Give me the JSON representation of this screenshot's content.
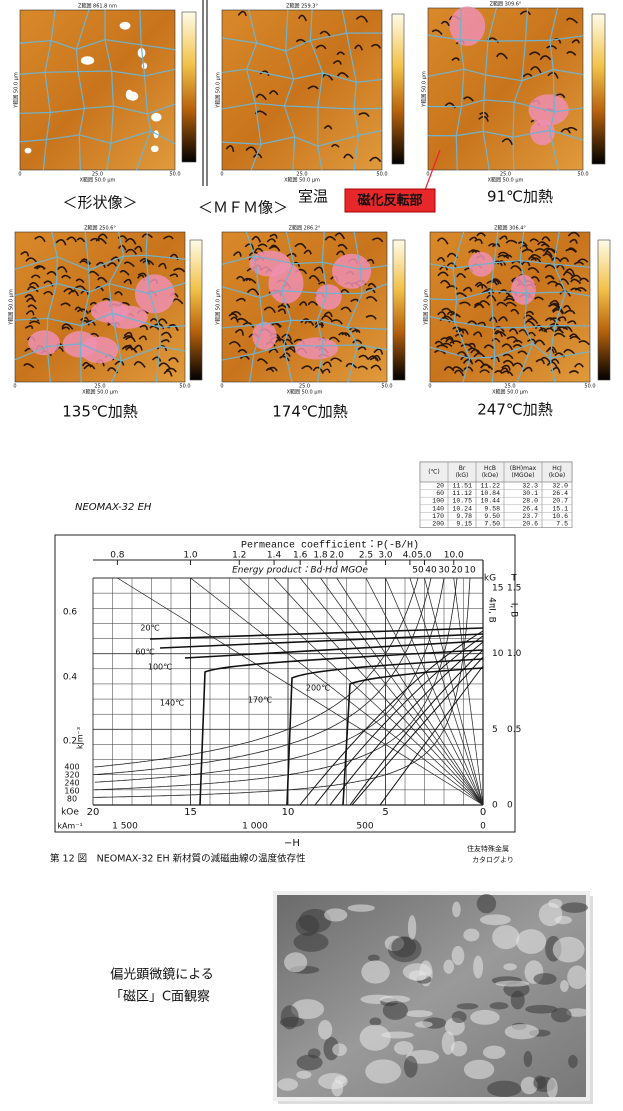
{
  "mfm_figure": {
    "topography_label": "＜形状像＞",
    "mfm_label": "＜ＭＦＭ像＞",
    "reversal_label": "磁化反転部",
    "captions": [
      "室温",
      "91℃加熱",
      "135℃加熱",
      "174℃加熱",
      "247℃加熱"
    ],
    "z_labels": [
      "Z範囲 861.8 nm",
      "Z範囲 259.3°",
      "Z範囲 309.6°",
      "Z範囲 250.6°",
      "Z範囲 286.2°",
      "Z範囲 306.4°"
    ],
    "x_ticks": [
      "0",
      "25.0",
      "50.0"
    ],
    "x_title": "X範囲 50.0 µm",
    "y_title": "Y範囲 50.0 µm"
  },
  "table": {
    "header": [
      [
        "(℃)"
      ],
      [
        "Br",
        "(kG)"
      ],
      [
        "HcB",
        "(kOe)"
      ],
      [
        "(BH)max",
        "(MGOe)"
      ],
      [
        "HcJ",
        "(kOe)"
      ]
    ],
    "rows": [
      [
        "20",
        "11.51",
        "11.22",
        "32.3",
        "32.0"
      ],
      [
        "60",
        "11.12",
        "10.84",
        "30.1",
        "26.4"
      ],
      [
        "100",
        "10.75",
        "10.44",
        "28.0",
        "20.7"
      ],
      [
        "140",
        "10.24",
        "9.58",
        "26.4",
        "15.1"
      ],
      [
        "170",
        "9.78",
        "9.50",
        "23.7",
        "10.6"
      ],
      [
        "200",
        "9.15",
        "7.50",
        "20.6",
        "7.5"
      ]
    ]
  },
  "chart": {
    "label": "NEOMAX-32 EH",
    "permeance_title": "Permeance coefficient：P(-B/H)",
    "permeance_ticks": [
      "0.8",
      "1.0",
      "1.2",
      "1.4",
      "1.6",
      "1.8",
      "2.0",
      "2.5",
      "3.0",
      "4.0",
      "5.0",
      "10.0"
    ],
    "energy_title": "Energy product：Bd·Hd MGOe",
    "energy_ticks": [
      "50",
      "40",
      "30",
      "20",
      "10"
    ],
    "left_ticks": [
      "0.6",
      "0.4",
      "0.2"
    ],
    "left_unit": "kJm⁻³",
    "energy_left_ticks": [
      "400",
      "320",
      "240",
      "160",
      "80"
    ],
    "right_kg_unit": "kG",
    "right_kg_ticks": [
      "15",
      "10",
      "5",
      "0"
    ],
    "right_t_unit": "T",
    "right_t_ticks": [
      "1.5",
      "1.0",
      "0.5",
      "0"
    ],
    "right_kg_title": "4πI, B",
    "right_t_title": "I, B",
    "temperatures": [
      "20℃",
      "60℃",
      "100℃",
      "140℃",
      "170℃",
      "200℃"
    ],
    "koe_unit": "kOe",
    "koe_ticks": [
      "20",
      "15",
      "10",
      "5",
      "0"
    ],
    "kam_unit": "kAm⁻¹",
    "kam_ticks": [
      "1 500",
      "1 000",
      "500",
      "0"
    ],
    "x_title": "−H",
    "caption": "第 12 図　NEOMAX-32 EH 新材質の減磁曲線の温度依存性",
    "source": [
      "住友特殊金属",
      "カタログより"
    ]
  },
  "micrograph": {
    "caption": [
      "偏光顕微鏡による",
      "「磁区」C面観察"
    ]
  }
}
